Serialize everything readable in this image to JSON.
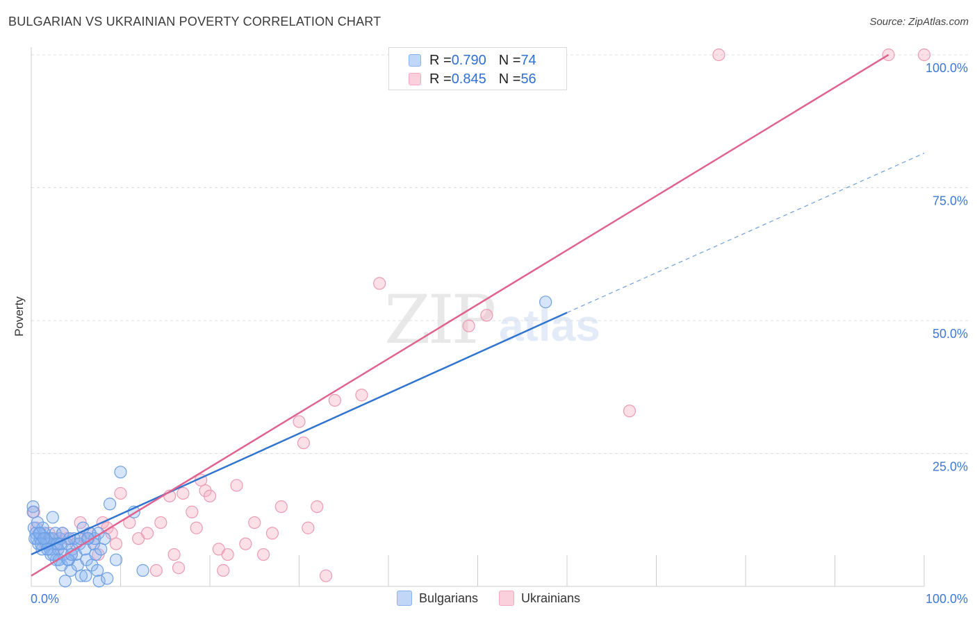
{
  "header": {
    "title": "BULGARIAN VS UKRAINIAN POVERTY CORRELATION CHART",
    "source": "Source: ZipAtlas.com"
  },
  "watermark": {
    "zip": "ZIP",
    "atlas": "atlas"
  },
  "legend_top": {
    "rows": [
      {
        "r_label": "R = ",
        "r_value": "0.790",
        "n_label": "N = ",
        "n_value": "74",
        "color": "#8ab4f0"
      },
      {
        "r_label": "R = ",
        "r_value": "0.845",
        "n_label": "N = ",
        "n_value": "56",
        "color": "#f4a7be"
      }
    ]
  },
  "legend_bottom": {
    "items": [
      {
        "label": "Bulgarians",
        "color": "#8ab4f0"
      },
      {
        "label": "Ukrainians",
        "color": "#f4a7be"
      }
    ]
  },
  "chart_data": {
    "type": "scatter",
    "title": "BULGARIAN VS UKRAINIAN POVERTY CORRELATION CHART",
    "xlabel": "",
    "ylabel": "Poverty",
    "xlim": [
      0,
      100
    ],
    "ylim": [
      0,
      100
    ],
    "x_tick_labels": [
      "0.0%",
      "100.0%"
    ],
    "y_tick_labels": [
      "25.0%",
      "50.0%",
      "75.0%",
      "100.0%"
    ],
    "y_tick_values": [
      25,
      50,
      75,
      100
    ],
    "colors": {
      "bulgarians": "#2f74d0",
      "ukrainians": "#e0638e"
    },
    "series": [
      {
        "name": "Bulgarians",
        "r": 0.79,
        "n": 74,
        "trend": {
          "x0": 0,
          "y0": 6,
          "x1": 60,
          "y1": 51.5,
          "dash_to_x": 100,
          "dash_to_y": 81.5
        },
        "points": [
          [
            0.2,
            15
          ],
          [
            0.2,
            14
          ],
          [
            0.3,
            11
          ],
          [
            0.5,
            10
          ],
          [
            0.6,
            9
          ],
          [
            0.8,
            8
          ],
          [
            1,
            9
          ],
          [
            1.2,
            7
          ],
          [
            1.5,
            10
          ],
          [
            1.7,
            8
          ],
          [
            2,
            9
          ],
          [
            2.2,
            6
          ],
          [
            2.4,
            13
          ],
          [
            2.6,
            8
          ],
          [
            2.8,
            5
          ],
          [
            3,
            7
          ],
          [
            3.2,
            9
          ],
          [
            3.4,
            4
          ],
          [
            3.6,
            6
          ],
          [
            3.8,
            1
          ],
          [
            4,
            8
          ],
          [
            4.2,
            5
          ],
          [
            4.4,
            3
          ],
          [
            4.6,
            7
          ],
          [
            4.8,
            9
          ],
          [
            5,
            6
          ],
          [
            5.2,
            4
          ],
          [
            5.4,
            8
          ],
          [
            5.6,
            2
          ],
          [
            5.8,
            11
          ],
          [
            6,
            7
          ],
          [
            6.2,
            5
          ],
          [
            6.4,
            9
          ],
          [
            6.6,
            10
          ],
          [
            6.8,
            4
          ],
          [
            7,
            8
          ],
          [
            7.2,
            6
          ],
          [
            7.4,
            3
          ],
          [
            7.6,
            1
          ],
          [
            7.8,
            7
          ],
          [
            1,
            10
          ],
          [
            1.3,
            11
          ],
          [
            1.6,
            9
          ],
          [
            1.9,
            8
          ],
          [
            2.1,
            7
          ],
          [
            2.3,
            9
          ],
          [
            2.5,
            6
          ],
          [
            2.7,
            10
          ],
          [
            2.9,
            8
          ],
          [
            3.1,
            5
          ],
          [
            0.4,
            9
          ],
          [
            0.7,
            12
          ],
          [
            0.9,
            10
          ],
          [
            1.1,
            8
          ],
          [
            1.4,
            9
          ],
          [
            1.8,
            7
          ],
          [
            3.3,
            8
          ],
          [
            3.5,
            10
          ],
          [
            4.1,
            5
          ],
          [
            4.3,
            9
          ],
          [
            4.5,
            6
          ],
          [
            5.5,
            9
          ],
          [
            6.1,
            2
          ],
          [
            7.1,
            9
          ],
          [
            7.5,
            10
          ],
          [
            8.2,
            9
          ],
          [
            8.5,
            1.5
          ],
          [
            8.8,
            15.5
          ],
          [
            6.3,
            9
          ],
          [
            9.5,
            5
          ],
          [
            10,
            21.5
          ],
          [
            11.5,
            14
          ],
          [
            12.5,
            3
          ],
          [
            57.6,
            53.5
          ]
        ]
      },
      {
        "name": "Ukrainians",
        "r": 0.845,
        "n": 56,
        "trend": {
          "x0": 0,
          "y0": 2,
          "x1": 96,
          "y1": 100
        },
        "points": [
          [
            0.3,
            14
          ],
          [
            0.6,
            11
          ],
          [
            1,
            9
          ],
          [
            1.5,
            8
          ],
          [
            2,
            10
          ],
          [
            2.5,
            9
          ],
          [
            3,
            7
          ],
          [
            3.5,
            10
          ],
          [
            4,
            9
          ],
          [
            4.5,
            6
          ],
          [
            5,
            8
          ],
          [
            5.5,
            12
          ],
          [
            6,
            9
          ],
          [
            6.5,
            10
          ],
          [
            7,
            8
          ],
          [
            7.5,
            6
          ],
          [
            8,
            12
          ],
          [
            8.5,
            11
          ],
          [
            9,
            10
          ],
          [
            9.5,
            8
          ],
          [
            10,
            17.5
          ],
          [
            11,
            12
          ],
          [
            12,
            9
          ],
          [
            13,
            10
          ],
          [
            14,
            3
          ],
          [
            14.5,
            12
          ],
          [
            15.5,
            17
          ],
          [
            16,
            6
          ],
          [
            16.5,
            3.5
          ],
          [
            17,
            17.5
          ],
          [
            18,
            14
          ],
          [
            18.5,
            11
          ],
          [
            19,
            20
          ],
          [
            19.5,
            18
          ],
          [
            20,
            17
          ],
          [
            21,
            7
          ],
          [
            21.5,
            3
          ],
          [
            22,
            6
          ],
          [
            23,
            19
          ],
          [
            24,
            8
          ],
          [
            25,
            12
          ],
          [
            26,
            6
          ],
          [
            27,
            10
          ],
          [
            28,
            15
          ],
          [
            30,
            31
          ],
          [
            30.5,
            27
          ],
          [
            31,
            11
          ],
          [
            32,
            15
          ],
          [
            33,
            2
          ],
          [
            34,
            35
          ],
          [
            37,
            36
          ],
          [
            39,
            57
          ],
          [
            49,
            49
          ],
          [
            51,
            51
          ],
          [
            67,
            33
          ],
          [
            77,
            100
          ]
        ],
        "extra_points": [
          [
            96,
            100
          ],
          [
            100,
            100
          ]
        ]
      }
    ]
  }
}
